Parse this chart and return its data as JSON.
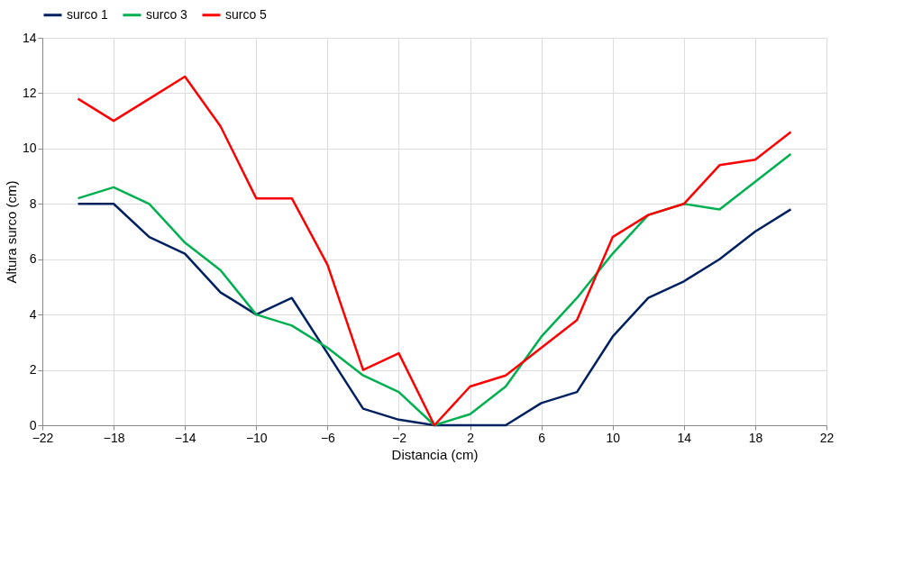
{
  "chart_data": {
    "type": "line",
    "xlabel": "Distancia (cm)",
    "ylabel": "Altura surco (cm)",
    "x": [
      -20,
      -18,
      -16,
      -14,
      -12,
      -10,
      -8,
      -6,
      -4,
      -2,
      0,
      2,
      4,
      6,
      8,
      10,
      12,
      14,
      16,
      18,
      20
    ],
    "series": [
      {
        "name": "surco 1",
        "color": "#002060",
        "values": [
          8,
          8,
          6.8,
          6.2,
          4.8,
          4.0,
          4.6,
          2.6,
          0.6,
          0.2,
          0,
          0,
          0,
          0.8,
          1.2,
          3.2,
          4.6,
          5.2,
          6.0,
          7.0,
          7.8
        ]
      },
      {
        "name": "surco 3",
        "color": "#00b050",
        "values": [
          8.2,
          8.6,
          8.0,
          6.6,
          5.6,
          4.0,
          3.6,
          2.8,
          1.8,
          1.2,
          0,
          0.4,
          1.4,
          3.2,
          4.6,
          6.2,
          7.6,
          8.0,
          7.8,
          8.8,
          9.8
        ]
      },
      {
        "name": "surco 5",
        "color": "#ff0000",
        "values": [
          11.8,
          11.0,
          11.8,
          12.6,
          10.8,
          8.2,
          8.2,
          5.8,
          2.0,
          2.6,
          0,
          1.4,
          1.8,
          2.8,
          3.8,
          6.8,
          7.6,
          8.0,
          9.4,
          9.6,
          10.6
        ]
      }
    ],
    "xlim": [
      -22,
      22
    ],
    "xticks": [
      -22,
      -18,
      -14,
      -10,
      -6,
      -2,
      2,
      6,
      10,
      14,
      18,
      22
    ],
    "ylim": [
      0,
      14
    ],
    "yticks": [
      0,
      2,
      4,
      6,
      8,
      10,
      12,
      14
    ],
    "grid": true,
    "legend": "top",
    "marker": "none",
    "line_style": "solid"
  }
}
